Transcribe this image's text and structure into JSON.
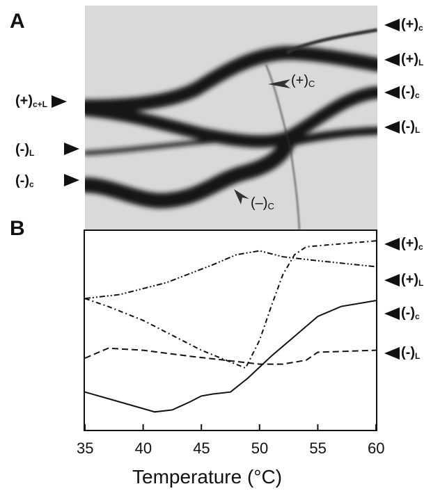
{
  "panel_a": {
    "letter": "A",
    "left_labels": [
      {
        "main": "(+)",
        "sub": "c+L"
      },
      {
        "main": "(-)",
        "sub": "L"
      },
      {
        "main": "(-)",
        "sub": "c"
      }
    ],
    "right_labels": [
      {
        "main": "(+)",
        "sub": "c"
      },
      {
        "main": "(+)",
        "sub": "L"
      },
      {
        "main": "(-)",
        "sub": "c"
      },
      {
        "main": "(-)",
        "sub": "L"
      }
    ],
    "inset_labels": [
      {
        "main": "(+)",
        "sub": "C"
      },
      {
        "main": "(–)",
        "sub": "C"
      }
    ]
  },
  "panel_b": {
    "letter": "B",
    "right_labels": [
      {
        "main": "(+)",
        "sub": "c"
      },
      {
        "main": "(+)",
        "sub": "L"
      },
      {
        "main": "(-)",
        "sub": "c"
      },
      {
        "main": "(-)",
        "sub": "L"
      }
    ]
  },
  "chart_data": {
    "type": "line",
    "xlabel": "Temperature (°C)",
    "x_ticks": [
      "35",
      "40",
      "45",
      "50",
      "55",
      "60"
    ],
    "xlim": [
      35,
      60
    ],
    "ylim": [
      0,
      100
    ],
    "series": [
      {
        "name": "(+)c",
        "style": "dotted-dash",
        "x": [
          35,
          37,
          40,
          45,
          48.8,
          50,
          51,
          52,
          53,
          54,
          56,
          60
        ],
        "y": [
          66,
          62,
          55,
          40,
          31,
          45,
          62,
          78,
          88,
          92,
          93,
          95
        ]
      },
      {
        "name": "(+)L",
        "style": "dash-dot-dot",
        "x": [
          35,
          38,
          42,
          46,
          48,
          50,
          52,
          55,
          60
        ],
        "y": [
          66,
          68,
          74,
          83,
          88,
          90,
          87,
          85,
          82
        ]
      },
      {
        "name": "(-)c",
        "style": "solid",
        "x": [
          35,
          38,
          41,
          42.5,
          44,
          45,
          46,
          47.5,
          49,
          51,
          53,
          55,
          57,
          60
        ],
        "y": [
          19,
          14,
          9,
          10,
          14,
          17,
          18,
          19,
          26,
          37,
          47,
          57,
          62,
          65
        ]
      },
      {
        "name": "(-)L",
        "style": "dashed",
        "x": [
          35,
          37,
          40,
          44,
          47,
          50,
          52,
          54,
          55,
          60
        ],
        "y": [
          36,
          41,
          40,
          37,
          35,
          33,
          33,
          35,
          39,
          40
        ]
      }
    ]
  }
}
